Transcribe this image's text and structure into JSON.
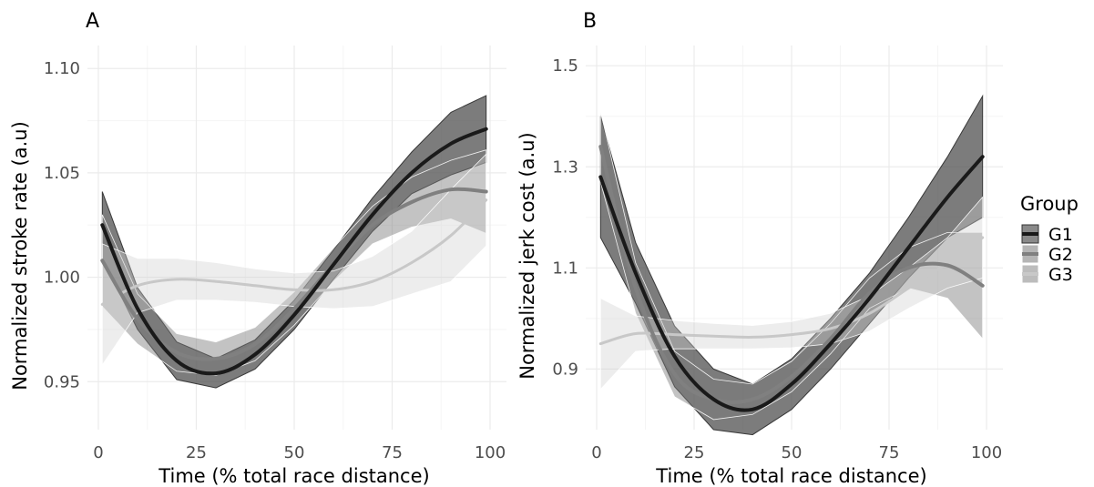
{
  "chart_data": [
    {
      "type": "line",
      "panel_tag": "A",
      "xlabel": "Time (% total race distance)",
      "ylabel": "Normalized stroke rate (a.u)",
      "xlim": [
        0,
        100
      ],
      "ylim": [
        0.927,
        1.111
      ],
      "xticks": [
        0,
        25,
        50,
        75,
        100
      ],
      "xtick_labels": [
        "0",
        "25",
        "50",
        "75",
        "100"
      ],
      "yticks": [
        0.95,
        1.0,
        1.05,
        1.1
      ],
      "ytick_labels": [
        "0.95",
        "1.00",
        "1.05",
        "1.10"
      ],
      "grid": true,
      "series": [
        {
          "name": "G1",
          "x": [
            1,
            10,
            20,
            30,
            40,
            50,
            60,
            70,
            80,
            90,
            99
          ],
          "y": [
            1.025,
            0.985,
            0.96,
            0.954,
            0.963,
            0.982,
            1.006,
            1.03,
            1.05,
            1.064,
            1.071
          ],
          "lower": [
            1.009,
            0.975,
            0.951,
            0.947,
            0.956,
            0.975,
            0.999,
            1.022,
            1.04,
            1.049,
            1.055
          ],
          "upper": [
            1.041,
            0.995,
            0.969,
            0.961,
            0.97,
            0.989,
            1.013,
            1.038,
            1.06,
            1.079,
            1.087
          ],
          "color": "#1a1a1a"
        },
        {
          "name": "G2",
          "x": [
            1,
            10,
            20,
            30,
            40,
            50,
            60,
            70,
            80,
            90,
            99
          ],
          "y": [
            1.008,
            0.98,
            0.964,
            0.961,
            0.968,
            0.985,
            1.006,
            1.025,
            1.036,
            1.042,
            1.041
          ],
          "lower": [
            0.986,
            0.968,
            0.955,
            0.953,
            0.96,
            0.977,
            0.998,
            1.016,
            1.024,
            1.028,
            1.021
          ],
          "upper": [
            1.03,
            0.992,
            0.973,
            0.969,
            0.976,
            0.993,
            1.014,
            1.034,
            1.048,
            1.056,
            1.061
          ],
          "color": "#808080"
        },
        {
          "name": "G3",
          "x": [
            1,
            10,
            20,
            30,
            40,
            50,
            60,
            70,
            80,
            90,
            99
          ],
          "y": [
            0.987,
            0.996,
            0.999,
            0.998,
            0.996,
            0.994,
            0.994,
            0.998,
            1.007,
            1.02,
            1.037
          ],
          "lower": [
            0.958,
            0.983,
            0.989,
            0.989,
            0.988,
            0.986,
            0.985,
            0.986,
            0.992,
            0.998,
            1.015
          ],
          "upper": [
            1.016,
            1.009,
            1.009,
            1.007,
            1.004,
            1.002,
            1.003,
            1.01,
            1.022,
            1.042,
            1.059
          ],
          "color": "#c8c8c8"
        }
      ]
    },
    {
      "type": "line",
      "panel_tag": "B",
      "xlabel": "Time (% total race distance)",
      "ylabel": "Normalized jerk cost (a.u)",
      "xlim": [
        0,
        100
      ],
      "ylim": [
        0.78,
        1.54
      ],
      "xticks": [
        0,
        25,
        50,
        75,
        100
      ],
      "xtick_labels": [
        "0",
        "25",
        "50",
        "75",
        "100"
      ],
      "yticks": [
        0.9,
        1.1,
        1.3,
        1.5
      ],
      "ytick_labels": [
        "0.9",
        "1.1",
        "1.3",
        "1.5"
      ],
      "grid": true,
      "series": [
        {
          "name": "G1",
          "x": [
            1,
            10,
            20,
            30,
            40,
            50,
            60,
            70,
            80,
            90,
            99
          ],
          "y": [
            1.28,
            1.09,
            0.925,
            0.84,
            0.82,
            0.87,
            0.95,
            1.04,
            1.14,
            1.24,
            1.32
          ],
          "lower": [
            1.16,
            1.03,
            0.865,
            0.78,
            0.77,
            0.82,
            0.9,
            0.99,
            1.08,
            1.16,
            1.2
          ],
          "upper": [
            1.4,
            1.15,
            0.985,
            0.9,
            0.87,
            0.92,
            1.0,
            1.09,
            1.2,
            1.32,
            1.44
          ],
          "color": "#1a1a1a"
        },
        {
          "name": "G2",
          "x": [
            1,
            10,
            20,
            30,
            40,
            50,
            60,
            70,
            80,
            90,
            99
          ],
          "y": [
            1.34,
            1.06,
            0.89,
            0.84,
            0.84,
            0.885,
            0.96,
            1.05,
            1.1,
            1.105,
            1.065
          ],
          "lower": [
            1.27,
            1.01,
            0.845,
            0.8,
            0.81,
            0.855,
            0.93,
            1.02,
            1.06,
            1.04,
            0.96
          ],
          "upper": [
            1.41,
            1.11,
            0.935,
            0.88,
            0.87,
            0.915,
            0.99,
            1.08,
            1.14,
            1.17,
            1.17
          ],
          "color": "#808080"
        },
        {
          "name": "G3",
          "x": [
            1,
            10,
            20,
            30,
            40,
            50,
            60,
            70,
            80,
            90,
            99
          ],
          "y": [
            0.95,
            0.97,
            0.968,
            0.965,
            0.963,
            0.968,
            0.98,
            1.01,
            1.06,
            1.11,
            1.16
          ],
          "lower": [
            0.86,
            0.935,
            0.94,
            0.94,
            0.94,
            0.942,
            0.95,
            0.975,
            1.02,
            1.06,
            1.08
          ],
          "upper": [
            1.04,
            1.005,
            0.996,
            0.99,
            0.986,
            0.994,
            1.01,
            1.045,
            1.1,
            1.16,
            1.24
          ],
          "color": "#c8c8c8"
        }
      ]
    }
  ],
  "legend": {
    "title": "Group",
    "placement": "right",
    "entries": [
      {
        "label": "G1",
        "line_color": "#1a1a1a",
        "fill_color": "#8a8a8a",
        "border_color": "#333333"
      },
      {
        "label": "G2",
        "line_color": "#808080",
        "fill_color": "#b5b5b5",
        "border_color": "#ffffff"
      },
      {
        "label": "G3",
        "line_color": "#c8c8c8",
        "fill_color": "#bcbcbc",
        "border_color": "#ffffff"
      }
    ]
  },
  "colors": {
    "grid_major": "#ebebeb",
    "grid_minor": "#f5f5f5",
    "ribbon_G1": "#4a4a4a",
    "ribbon_G2": "#7a7a7a",
    "ribbon_G3": "#cfcfcf",
    "ribbon_border": "#2b2b2b"
  }
}
